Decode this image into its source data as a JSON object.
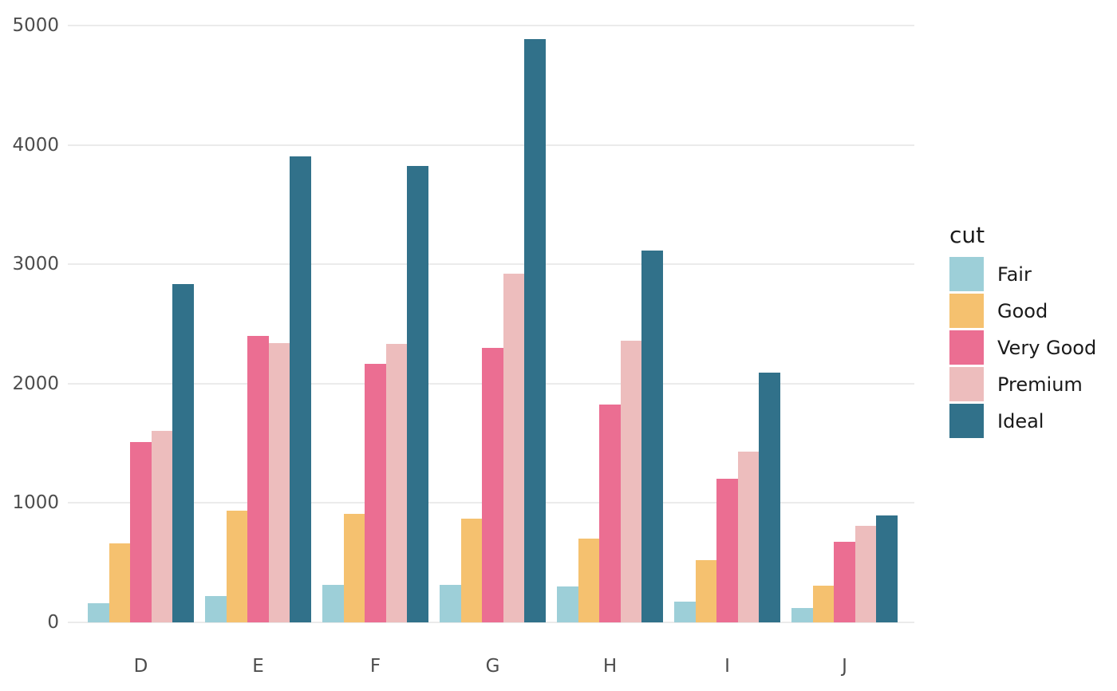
{
  "chart_data": {
    "type": "bar",
    "title": "",
    "subtitle": "",
    "xlabel": "",
    "ylabel": "",
    "categories": [
      "D",
      "E",
      "F",
      "G",
      "H",
      "I",
      "J"
    ],
    "series": [
      {
        "name": "Fair",
        "color": "#9dcfd8",
        "values": [
          163,
          224,
          312,
          314,
          303,
          175,
          119
        ]
      },
      {
        "name": "Good",
        "color": "#f5c16f",
        "values": [
          662,
          933,
          909,
          871,
          702,
          522,
          307
        ]
      },
      {
        "name": "Very Good",
        "color": "#eb6e92",
        "values": [
          1513,
          2400,
          2164,
          2299,
          1824,
          1204,
          678
        ]
      },
      {
        "name": "Premium",
        "color": "#edbdbd",
        "values": [
          1603,
          2337,
          2331,
          2924,
          2360,
          1428,
          808
        ]
      },
      {
        "name": "Ideal",
        "color": "#31718a",
        "values": [
          2834,
          3903,
          3826,
          4884,
          3115,
          2093,
          896
        ]
      }
    ],
    "legend_title": "cut",
    "legend_position": "right",
    "y_ticks": [
      0,
      1000,
      2000,
      3000,
      4000,
      5000
    ],
    "y_tick_labels": [
      "0",
      "1000",
      "2000",
      "3000",
      "4000",
      "5000"
    ],
    "ylim": [
      0,
      5215
    ],
    "grid": "horizontal-major-only",
    "bar_layout": "grouped-dodge",
    "background_color": "#ffffff",
    "grid_color": "#ebebeb",
    "axis_text_color": "#4d4d4d",
    "legend_text_color": "#1a1a1a"
  }
}
